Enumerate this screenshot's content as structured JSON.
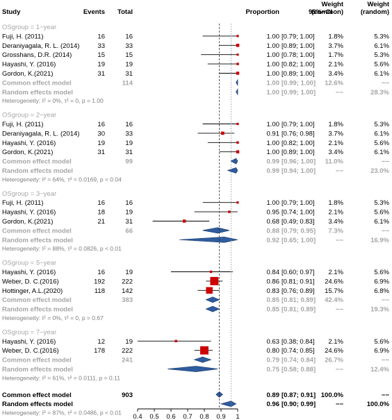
{
  "headers": {
    "study": "Study",
    "events": "Events",
    "total": "Total",
    "proportion": "Proportion",
    "ci": "95%−CI",
    "weight_common": "Weight\n(common)",
    "weight_random": "Weight\n(random)"
  },
  "groups": [
    {
      "label": "OSgroup = 1−year",
      "studies": [
        {
          "name": "Fuji, H. (2011)",
          "events": "16",
          "total": "16",
          "prop": "1.00",
          "ci": "[0.79; 1.00]",
          "wc": "1.8%",
          "wr": "5.3%",
          "est": 1.0,
          "lo": 0.79,
          "hi": 1.0,
          "w": 1.8
        },
        {
          "name": "Deraniyagala, R. L. (2014)",
          "events": "33",
          "total": "33",
          "prop": "1.00",
          "ci": "[0.89; 1.00]",
          "wc": "3.7%",
          "wr": "6.1%",
          "est": 1.0,
          "lo": 0.89,
          "hi": 1.0,
          "w": 3.7
        },
        {
          "name": "Grosshans, D.R. (2014)",
          "events": "15",
          "total": "15",
          "prop": "1.00",
          "ci": "[0.78; 1.00]",
          "wc": "1.7%",
          "wr": "5.3%",
          "est": 1.0,
          "lo": 0.78,
          "hi": 1.0,
          "w": 1.7
        },
        {
          "name": "Hayashi, Y. (2016)",
          "events": "19",
          "total": "19",
          "prop": "1.00",
          "ci": "[0.82; 1.00]",
          "wc": "2.1%",
          "wr": "5.6%",
          "est": 1.0,
          "lo": 0.82,
          "hi": 1.0,
          "w": 2.1
        },
        {
          "name": "Gordon, K.(2021)",
          "events": "31",
          "total": "31",
          "prop": "1.00",
          "ci": "[0.89; 1.00]",
          "wc": "3.4%",
          "wr": "6.1%",
          "est": 1.0,
          "lo": 0.89,
          "hi": 1.0,
          "w": 3.4
        }
      ],
      "common": {
        "label": "Common effect model",
        "total": "114",
        "prop": "1.00",
        "ci": "[0.99; 1.00]",
        "wc": "12.6%",
        "wr": "−−",
        "est": 1.0,
        "lo": 0.99,
        "hi": 1.0
      },
      "random": {
        "label": "Random effects model",
        "prop": "1.00",
        "ci": "[0.99; 1.00]",
        "wc": "−−",
        "wr": "28.3%",
        "est": 1.0,
        "lo": 0.99,
        "hi": 1.0
      },
      "het": "Heterogeneity: I² = 0%, τ² = 0, p = 1.00"
    },
    {
      "label": "OSgroup = 2−year",
      "studies": [
        {
          "name": "Fuji, H. (2011)",
          "events": "16",
          "total": "16",
          "prop": "1.00",
          "ci": "[0.79; 1.00]",
          "wc": "1.8%",
          "wr": "5.3%",
          "est": 1.0,
          "lo": 0.79,
          "hi": 1.0,
          "w": 1.8
        },
        {
          "name": "Deraniyagala, R. L. (2014)",
          "events": "30",
          "total": "33",
          "prop": "0.91",
          "ci": "[0.76; 0.98]",
          "wc": "3.7%",
          "wr": "6.1%",
          "est": 0.91,
          "lo": 0.76,
          "hi": 0.98,
          "w": 3.7
        },
        {
          "name": "Hayashi, Y. (2016)",
          "events": "19",
          "total": "19",
          "prop": "1.00",
          "ci": "[0.82; 1.00]",
          "wc": "2.1%",
          "wr": "5.6%",
          "est": 1.0,
          "lo": 0.82,
          "hi": 1.0,
          "w": 2.1
        },
        {
          "name": "Gordon, K.(2021)",
          "events": "31",
          "total": "31",
          "prop": "1.00",
          "ci": "[0.89; 1.00]",
          "wc": "3.4%",
          "wr": "6.1%",
          "est": 1.0,
          "lo": 0.89,
          "hi": 1.0,
          "w": 3.4
        }
      ],
      "common": {
        "label": "Common effect model",
        "total": "99",
        "prop": "0.99",
        "ci": "[0.96; 1.00]",
        "wc": "11.0%",
        "wr": "−−",
        "est": 0.99,
        "lo": 0.96,
        "hi": 1.0
      },
      "random": {
        "label": "Random effects model",
        "prop": "0.99",
        "ci": "[0.94; 1.00]",
        "wc": "−−",
        "wr": "23.0%",
        "est": 0.99,
        "lo": 0.94,
        "hi": 1.0
      },
      "het": "Heterogeneity: I² = 64%, τ² = 0.0169, p = 0.04"
    },
    {
      "label": "OSgroup = 3−year",
      "studies": [
        {
          "name": "Fuji, H. (2011)",
          "events": "16",
          "total": "16",
          "prop": "1.00",
          "ci": "[0.79; 1.00]",
          "wc": "1.8%",
          "wr": "5.3%",
          "est": 1.0,
          "lo": 0.79,
          "hi": 1.0,
          "w": 1.8
        },
        {
          "name": "Hayashi, Y. (2016)",
          "events": "18",
          "total": "19",
          "prop": "0.95",
          "ci": "[0.74; 1.00]",
          "wc": "2.1%",
          "wr": "5.6%",
          "est": 0.95,
          "lo": 0.74,
          "hi": 1.0,
          "w": 2.1
        },
        {
          "name": "Gordon, K.(2021)",
          "events": "21",
          "total": "31",
          "prop": "0.68",
          "ci": "[0.49; 0.83]",
          "wc": "3.4%",
          "wr": "6.1%",
          "est": 0.68,
          "lo": 0.49,
          "hi": 0.83,
          "w": 3.4
        }
      ],
      "common": {
        "label": "Common effect model",
        "total": "66",
        "prop": "0.88",
        "ci": "[0.79; 0.95]",
        "wc": "7.3%",
        "wr": "−−",
        "est": 0.88,
        "lo": 0.79,
        "hi": 0.95
      },
      "random": {
        "label": "Random effects model",
        "prop": "0.92",
        "ci": "[0.65; 1.00]",
        "wc": "−−",
        "wr": "16.9%",
        "est": 0.92,
        "lo": 0.65,
        "hi": 1.0
      },
      "het": "Heterogeneity: I² = 88%, τ² = 0.0826, p < 0.01"
    },
    {
      "label": "OSgroup = 5−year",
      "studies": [
        {
          "name": "Hayashi, Y. (2016)",
          "events": "16",
          "total": "19",
          "prop": "0.84",
          "ci": "[0.60; 0.97]",
          "wc": "2.1%",
          "wr": "5.6%",
          "est": 0.84,
          "lo": 0.6,
          "hi": 0.97,
          "w": 2.1
        },
        {
          "name": "Weber, D. C.(2016)",
          "events": "192",
          "total": "222",
          "prop": "0.86",
          "ci": "[0.81; 0.91]",
          "wc": "24.6%",
          "wr": "6.9%",
          "est": 0.86,
          "lo": 0.81,
          "hi": 0.91,
          "w": 24.6
        },
        {
          "name": "Hottinger, A.L.(2020)",
          "events": "118",
          "total": "142",
          "prop": "0.83",
          "ci": "[0.76; 0.89]",
          "wc": "15.7%",
          "wr": "6.8%",
          "est": 0.83,
          "lo": 0.76,
          "hi": 0.89,
          "w": 15.7
        }
      ],
      "common": {
        "label": "Common effect model",
        "total": "383",
        "prop": "0.85",
        "ci": "[0.81; 0.89]",
        "wc": "42.4%",
        "wr": "−−",
        "est": 0.85,
        "lo": 0.81,
        "hi": 0.89
      },
      "random": {
        "label": "Random effects model",
        "prop": "0.85",
        "ci": "[0.81; 0.89]",
        "wc": "−−",
        "wr": "19.3%",
        "est": 0.85,
        "lo": 0.81,
        "hi": 0.89
      },
      "het": "Heterogeneity: I² = 0%, τ² = 0, p = 0.67"
    },
    {
      "label": "OSgroup = 7−year",
      "studies": [
        {
          "name": "Hayashi, Y. (2016)",
          "events": "12",
          "total": "19",
          "prop": "0.63",
          "ci": "[0.38; 0.84]",
          "wc": "2.1%",
          "wr": "5.6%",
          "est": 0.63,
          "lo": 0.38,
          "hi": 0.84,
          "w": 2.1
        },
        {
          "name": "Weber, D. C.(2016)",
          "events": "178",
          "total": "222",
          "prop": "0.80",
          "ci": "[0.74; 0.85]",
          "wc": "24.6%",
          "wr": "6.9%",
          "est": 0.8,
          "lo": 0.74,
          "hi": 0.85,
          "w": 24.6
        }
      ],
      "common": {
        "label": "Common effect model",
        "total": "241",
        "prop": "0.79",
        "ci": "[0.74; 0.84]",
        "wc": "26.7%",
        "wr": "−−",
        "est": 0.79,
        "lo": 0.74,
        "hi": 0.84
      },
      "random": {
        "label": "Random effects model",
        "prop": "0.75",
        "ci": "[0.58; 0.88]",
        "wc": "−−",
        "wr": "12.4%",
        "est": 0.75,
        "lo": 0.58,
        "hi": 0.88
      },
      "het": "Heterogeneity: I² = 61%, τ² = 0.0111, p = 0.11"
    }
  ],
  "overall": {
    "common": {
      "label": "Common effect model",
      "total": "903",
      "prop": "0.89",
      "ci": "[0.87; 0.91]",
      "wc": "100.0%",
      "wr": "−−",
      "est": 0.89,
      "lo": 0.87,
      "hi": 0.91
    },
    "random": {
      "label": "Random effects model",
      "prop": "0.96",
      "ci": "[0.90; 0.99]",
      "wc": "−−",
      "wr": "100.0%",
      "est": 0.96,
      "lo": 0.9,
      "hi": 0.99
    },
    "het": "Heterogeneity: I² = 87%, τ² = 0.0486, p < 0.01"
  },
  "chart_data": {
    "type": "forest",
    "x_ticks": [
      "0.4",
      "0.5",
      "0.6",
      "0.7",
      "0.8",
      "0.9",
      "1"
    ],
    "xlim": [
      0.4,
      1.0
    ],
    "reference_lines": {
      "common": 0.89,
      "random": 0.96
    },
    "grid": false
  },
  "colors": {
    "study_box": "#cc0000",
    "diamond_fill": "#2e5c9e",
    "diamond_stroke": "#1f3f73",
    "grey_text": "#a6a6a6",
    "ci_line": "#000000"
  }
}
